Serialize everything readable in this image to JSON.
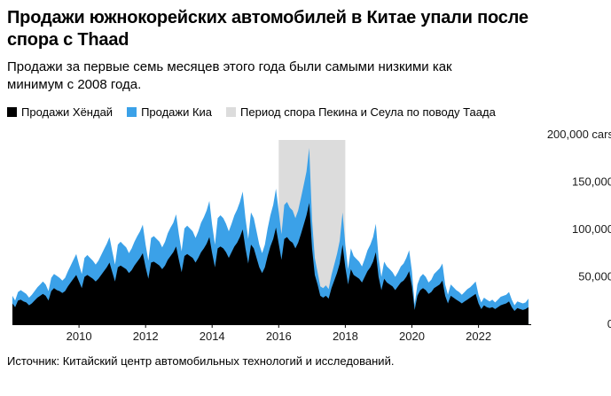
{
  "header": {
    "title": "Продажи южнокорейских автомобилей в Китае упали после спора с Thaad",
    "subtitle": "Продажи за первые семь месяцев этого года были самыми низкими как минимум с 2008 года."
  },
  "legend": [
    {
      "label": "Продажи Хёндай",
      "color": "#000000"
    },
    {
      "label": "Продажи Киа",
      "color": "#3ba1e8"
    },
    {
      "label": "Период спора Пекина и Сеула по поводу Таада",
      "color": "#dcdcdc"
    }
  ],
  "footer": {
    "source": "Источник: Китайский центр автомобильных технологий и исследований."
  },
  "chart_data": {
    "type": "area",
    "stacked": true,
    "title": "Продажи южнокорейских автомобилей в Китае упали после спора с Thaad",
    "xlabel": "",
    "ylabel": "cars",
    "x_start": 2008.0,
    "x_step_months": 1,
    "x_ticks": [
      2010,
      2012,
      2014,
      2016,
      2018,
      2020,
      2022
    ],
    "ylim": [
      0,
      200000
    ],
    "y_ticks": [
      0,
      50000,
      100000,
      150000,
      200000
    ],
    "y_tick_labels": [
      "0",
      "50,000",
      "100,000",
      "150,000",
      "200,000 cars"
    ],
    "grid": false,
    "legend_position": "top",
    "band": {
      "label": "Период спора Пекина и Сеула по поводу Таада",
      "from": 2016.0,
      "to": 2018.0,
      "color": "#dcdcdc"
    },
    "series": [
      {
        "name": "Продажи Хёндай",
        "color": "#000000",
        "values": [
          22000,
          18000,
          25000,
          26000,
          24000,
          23000,
          20000,
          22000,
          25000,
          28000,
          30000,
          32000,
          30000,
          25000,
          35000,
          38000,
          36000,
          35000,
          33000,
          35000,
          40000,
          44000,
          48000,
          52000,
          45000,
          38000,
          50000,
          52000,
          50000,
          48000,
          45000,
          48000,
          52000,
          56000,
          60000,
          65000,
          55000,
          45000,
          60000,
          62000,
          60000,
          58000,
          54000,
          57000,
          62000,
          66000,
          70000,
          75000,
          60000,
          48000,
          65000,
          66000,
          64000,
          62000,
          58000,
          62000,
          68000,
          72000,
          76000,
          82000,
          68000,
          55000,
          72000,
          74000,
          72000,
          70000,
          65000,
          70000,
          76000,
          80000,
          85000,
          92000,
          75000,
          60000,
          80000,
          82000,
          80000,
          76000,
          70000,
          76000,
          82000,
          86000,
          92000,
          100000,
          80000,
          64000,
          84000,
          80000,
          70000,
          60000,
          54000,
          60000,
          72000,
          82000,
          90000,
          102000,
          85000,
          68000,
          90000,
          92000,
          88000,
          86000,
          80000,
          86000,
          95000,
          105000,
          115000,
          128000,
          80000,
          52000,
          42000,
          30000,
          28000,
          30000,
          27000,
          38000,
          46000,
          54000,
          64000,
          84000,
          60000,
          42000,
          58000,
          52000,
          50000,
          48000,
          44000,
          50000,
          56000,
          60000,
          66000,
          76000,
          50000,
          36000,
          48000,
          44000,
          42000,
          40000,
          36000,
          40000,
          44000,
          46000,
          50000,
          56000,
          40000,
          15000,
          30000,
          36000,
          38000,
          36000,
          32000,
          34000,
          38000,
          40000,
          42000,
          46000,
          30000,
          22000,
          30000,
          28000,
          26000,
          24000,
          22000,
          24000,
          26000,
          28000,
          30000,
          32000,
          22000,
          16000,
          20000,
          18000,
          17000,
          18000,
          16000,
          18000,
          20000,
          21000,
          22000,
          24000,
          18000,
          14000,
          17000,
          16000,
          15000,
          16000,
          18000
        ]
      },
      {
        "name": "Продажи Киа",
        "color": "#3ba1e8",
        "values": [
          8000,
          7000,
          9000,
          10000,
          10000,
          9000,
          8000,
          9000,
          10000,
          11000,
          12000,
          13000,
          12000,
          10000,
          14000,
          15000,
          15000,
          14000,
          13000,
          14000,
          16000,
          18000,
          20000,
          22000,
          18000,
          15000,
          20000,
          21000,
          20000,
          19000,
          18000,
          19000,
          21000,
          23000,
          25000,
          27000,
          22000,
          18000,
          24000,
          25000,
          24000,
          23000,
          21000,
          23000,
          25000,
          27000,
          28000,
          30000,
          24000,
          19000,
          26000,
          27000,
          26000,
          25000,
          23000,
          25000,
          28000,
          30000,
          31000,
          34000,
          27000,
          22000,
          29000,
          30000,
          29000,
          28000,
          26000,
          28000,
          31000,
          33000,
          35000,
          38000,
          30000,
          24000,
          32000,
          33000,
          32000,
          30000,
          28000,
          30000,
          33000,
          35000,
          37000,
          40000,
          32000,
          26000,
          34000,
          32000,
          28000,
          24000,
          21000,
          24000,
          29000,
          33000,
          36000,
          41000,
          34000,
          27000,
          36000,
          37000,
          35000,
          34000,
          32000,
          34000,
          38000,
          42000,
          46000,
          58000,
          30000,
          18000,
          13000,
          10000,
          10000,
          11000,
          10000,
          14000,
          17000,
          20000,
          24000,
          34000,
          24000,
          16000,
          22000,
          20000,
          19000,
          18000,
          17000,
          19000,
          22000,
          24000,
          26000,
          30000,
          20000,
          14000,
          18000,
          17000,
          16000,
          15000,
          14000,
          15000,
          17000,
          18000,
          20000,
          22000,
          16000,
          6000,
          12000,
          14000,
          15000,
          14000,
          12000,
          13000,
          15000,
          16000,
          17000,
          18000,
          12000,
          9000,
          12000,
          11000,
          10000,
          10000,
          9000,
          10000,
          11000,
          11000,
          12000,
          13000,
          9000,
          7000,
          8000,
          8000,
          7000,
          8000,
          7000,
          8000,
          9000,
          9000,
          9000,
          10000,
          8000,
          6000,
          7000,
          7000,
          7000,
          7000,
          9000
        ]
      }
    ]
  }
}
